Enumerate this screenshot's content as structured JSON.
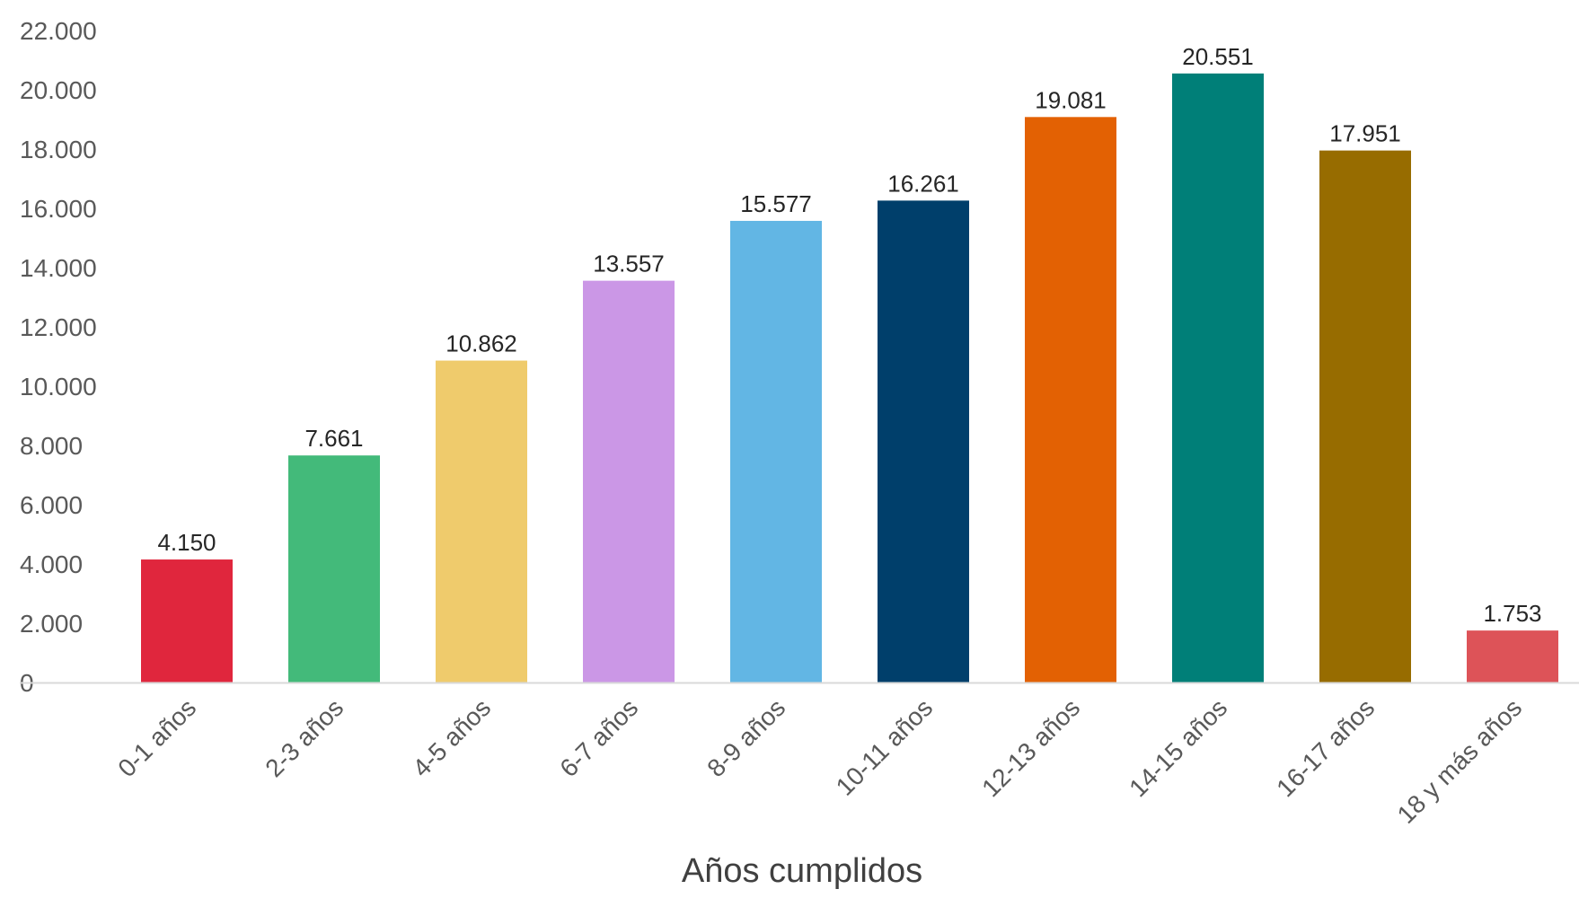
{
  "chart_data": {
    "type": "bar",
    "title": "",
    "xlabel": "Años cumplidos",
    "ylabel": "",
    "ylim": [
      0,
      22000
    ],
    "yticks": [
      0,
      2000,
      4000,
      6000,
      8000,
      10000,
      12000,
      14000,
      16000,
      18000,
      20000,
      22000
    ],
    "ytick_labels": [
      "0",
      "2.000",
      "4.000",
      "6.000",
      "8.000",
      "10.000",
      "12.000",
      "14.000",
      "16.000",
      "18.000",
      "20.000",
      "22.000"
    ],
    "grid": false,
    "legend": "none",
    "categories": [
      "0-1 años",
      "2-3 años",
      "4-5 años",
      "6-7 años",
      "8-9 años",
      "10-11 años",
      "12-13 años",
      "14-15 años",
      "16-17 años",
      "18 y más años"
    ],
    "values": [
      4150,
      7661,
      10862,
      13557,
      15577,
      16261,
      19081,
      20551,
      17951,
      1753
    ],
    "value_labels": [
      "4.150",
      "7.661",
      "10.862",
      "13.557",
      "15.577",
      "16.261",
      "19.081",
      "20.551",
      "17.951",
      "1.753"
    ],
    "colors": [
      "#E0263D",
      "#43BA7A",
      "#EFCB6C",
      "#CB97E6",
      "#62B6E4",
      "#003F6B",
      "#E36103",
      "#007F78",
      "#976C00",
      "#DD5358"
    ],
    "axis_color": "#D9D9D9"
  }
}
